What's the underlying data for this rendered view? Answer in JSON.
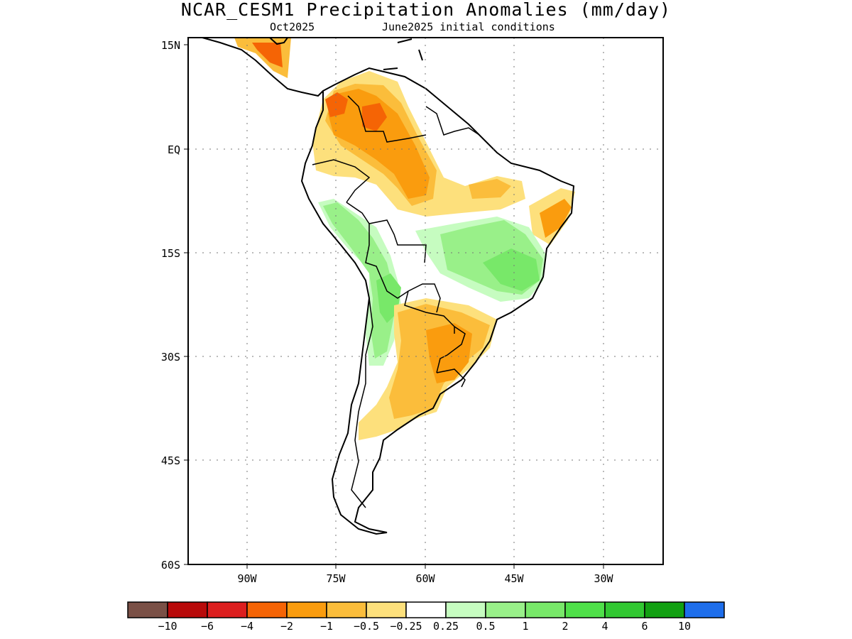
{
  "title": "NCAR_CESM1 Precipitation Anomalies (mm/day)",
  "subtitle_left": "Oct2025",
  "subtitle_right": "June2025 initial conditions",
  "map": {
    "lat_labels": [
      "15N",
      "EQ",
      "15S",
      "30S",
      "45S",
      "60S"
    ],
    "lon_labels": [
      "90W",
      "75W",
      "60W",
      "45W",
      "30W"
    ]
  },
  "colorbar": {
    "colors": [
      "#7a5046",
      "#b80a0a",
      "#dc1e1e",
      "#f56405",
      "#fa9c0e",
      "#fbbd3b",
      "#fde07c",
      "#ffffff",
      "#c6fcc0",
      "#99f089",
      "#78e869",
      "#4fe049",
      "#32c832",
      "#12a012",
      "#1e6eeb"
    ],
    "labels": [
      "−10",
      "−6",
      "−4",
      "−2",
      "−1",
      "−0.5",
      "−0.25",
      "0.25",
      "0.5",
      "1",
      "2",
      "4",
      "6",
      "10"
    ]
  }
}
